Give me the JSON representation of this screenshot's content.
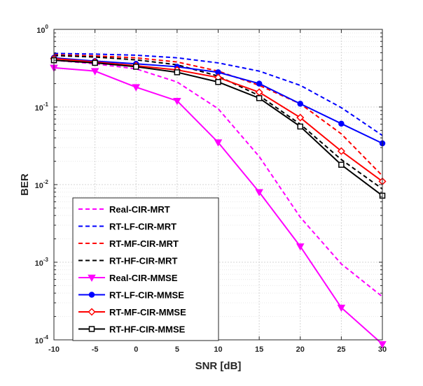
{
  "chart_data": {
    "type": "line",
    "xlabel": "SNR [dB]",
    "ylabel": "BER",
    "x": [
      -10,
      -5,
      0,
      5,
      10,
      15,
      20,
      25,
      30
    ],
    "xlim": [
      -10,
      30
    ],
    "ylim": [
      0.0001,
      1
    ],
    "yscale": "log",
    "grid": true,
    "legend_location": "bottom-left",
    "x_tick_labels": [
      "-10",
      "-5",
      "0",
      "5",
      "10",
      "15",
      "20",
      "25",
      "30"
    ],
    "y_ticks": [
      {
        "value": 1,
        "base": "10",
        "exp": "0"
      },
      {
        "value": 0.1,
        "base": "10",
        "exp": "-1"
      },
      {
        "value": 0.01,
        "base": "10",
        "exp": "-2"
      },
      {
        "value": 0.001,
        "base": "10",
        "exp": "-3"
      },
      {
        "value": 0.0001,
        "base": "10",
        "exp": "-4"
      }
    ],
    "series": [
      {
        "name": "Real-CIR-MRT",
        "color": "#ff00ff",
        "style": "dashed",
        "marker": "none",
        "values": [
          0.4,
          0.36,
          0.31,
          0.21,
          0.095,
          0.023,
          0.0038,
          0.00095,
          0.00036
        ]
      },
      {
        "name": "RT-LF-CIR-MRT",
        "color": "#0000ff",
        "style": "dashed",
        "marker": "none",
        "values": [
          0.49,
          0.48,
          0.465,
          0.43,
          0.37,
          0.29,
          0.19,
          0.098,
          0.043
        ]
      },
      {
        "name": "RT-MF-CIR-MRT",
        "color": "#ff0000",
        "style": "dashed",
        "marker": "none",
        "values": [
          0.47,
          0.455,
          0.43,
          0.38,
          0.29,
          0.19,
          0.11,
          0.045,
          0.013
        ]
      },
      {
        "name": "RT-HF-CIR-MRT",
        "color": "#000000",
        "style": "dashed",
        "marker": "none",
        "values": [
          0.46,
          0.44,
          0.405,
          0.35,
          0.25,
          0.14,
          0.06,
          0.021,
          0.0088
        ]
      },
      {
        "name": "Real-CIR-MMSE",
        "color": "#ff00ff",
        "style": "solid",
        "marker": "triangle-down",
        "values": [
          0.32,
          0.29,
          0.18,
          0.12,
          0.035,
          0.008,
          0.0016,
          0.00026,
          8.8e-05
        ]
      },
      {
        "name": "RT-LF-CIR-MMSE",
        "color": "#0000ff",
        "style": "solid",
        "marker": "circle",
        "values": [
          0.43,
          0.39,
          0.36,
          0.33,
          0.28,
          0.2,
          0.11,
          0.061,
          0.034
        ]
      },
      {
        "name": "RT-MF-CIR-MMSE",
        "color": "#ff0000",
        "style": "solid",
        "marker": "diamond",
        "values": [
          0.42,
          0.38,
          0.34,
          0.3,
          0.24,
          0.155,
          0.073,
          0.027,
          0.011
        ]
      },
      {
        "name": "RT-HF-CIR-MMSE",
        "color": "#000000",
        "style": "solid",
        "marker": "square",
        "values": [
          0.4,
          0.37,
          0.33,
          0.28,
          0.21,
          0.13,
          0.056,
          0.018,
          0.0072
        ]
      }
    ]
  }
}
